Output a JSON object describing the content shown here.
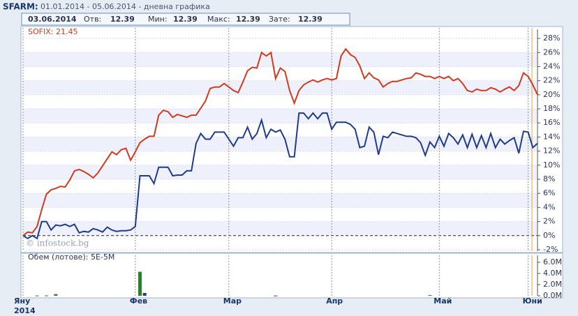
{
  "header": {
    "title": "SFARM:",
    "subtitle": "01.01.2014 - 05.06.2014 - дневна графика"
  },
  "info": {
    "date": "03.06.2014",
    "fields": [
      {
        "label": "Отв:",
        "value": 12.39
      },
      {
        "label": "Мин:",
        "value": 12.39
      },
      {
        "label": "Макс:",
        "value": 12.39
      },
      {
        "label": "Зате:",
        "value": 12.39
      }
    ]
  },
  "watermark": "© infostock.bg",
  "chart_data": [
    {
      "type": "line",
      "x": [
        0,
        1,
        2,
        3,
        4,
        5,
        6,
        7,
        8,
        9,
        10,
        11,
        12,
        13,
        14,
        15,
        16,
        17,
        18,
        19,
        20,
        21,
        22,
        23,
        24,
        25,
        26,
        27,
        28,
        29,
        30,
        31,
        32,
        33,
        34,
        35,
        36,
        37,
        38,
        39,
        40,
        41,
        42,
        43,
        44,
        45,
        46,
        47,
        48,
        49,
        50,
        51,
        52,
        53,
        54,
        55,
        56,
        57,
        58,
        59,
        60,
        61,
        62,
        63,
        64,
        65,
        66,
        67,
        68,
        69,
        70,
        71,
        72,
        73,
        74,
        75,
        76,
        77,
        78,
        79,
        80,
        81,
        82,
        83,
        84,
        85,
        86,
        87,
        88,
        89,
        90,
        91,
        92,
        93,
        94,
        95,
        96,
        97,
        98,
        99,
        100,
        101,
        102,
        103,
        104,
        105,
        106,
        107,
        108,
        109,
        110
      ],
      "series": [
        {
          "name": "SOFIX: 21.45",
          "color": "#d03a1e",
          "values": [
            0,
            0.5,
            0.4,
            1.3,
            3.7,
            5.9,
            6.5,
            6.7,
            7.0,
            6.9,
            7.9,
            9.2,
            9.4,
            9.1,
            8.7,
            8.2,
            8.9,
            9.9,
            10.9,
            11.9,
            11.5,
            12.2,
            12.4,
            10.7,
            11.9,
            13.2,
            13.7,
            14.1,
            14.1,
            17.1,
            17.8,
            17.6,
            16.8,
            17.2,
            17.0,
            16.8,
            17.1,
            17.1,
            18.1,
            19.1,
            20.9,
            21.1,
            21.1,
            21.6,
            21.1,
            20.6,
            20.3,
            21.8,
            23.4,
            23.9,
            23.8,
            26.0,
            25.5,
            26.0,
            22.3,
            23.8,
            23.3,
            20.6,
            18.8,
            20.6,
            21.4,
            21.8,
            22.1,
            21.8,
            22.1,
            22.3,
            22.1,
            22.3,
            25.5,
            26.5,
            25.7,
            25.3,
            24.1,
            22.3,
            23.1,
            22.4,
            22.1,
            21.1,
            21.6,
            21.9,
            21.9,
            22.1,
            22.3,
            22.4,
            23.1,
            22.9,
            22.6,
            22.6,
            22.3,
            22.6,
            22.3,
            22.6,
            22.0,
            22.3,
            21.6,
            20.6,
            20.4,
            20.8,
            20.6,
            20.6,
            21.0,
            20.8,
            20.4,
            20.8,
            21.1,
            20.6,
            21.3,
            23.1,
            22.6,
            21.4,
            20.0
          ]
        },
        {
          "color": "#1f3b8a",
          "values": [
            0,
            -0.4,
            0,
            -0.4,
            2.0,
            2.0,
            0.8,
            1.5,
            1.4,
            1.6,
            1.3,
            1.6,
            0.4,
            0.6,
            0.5,
            1.0,
            0.8,
            0.5,
            1.2,
            0.8,
            0.6,
            0.7,
            0.7,
            0.8,
            1.3,
            8.5,
            8.5,
            8.5,
            7.4,
            9.7,
            9.7,
            9.7,
            8.5,
            8.6,
            8.6,
            9.2,
            9.2,
            13.1,
            14.5,
            13.7,
            13.7,
            14.7,
            14.7,
            14.7,
            13.7,
            12.7,
            13.9,
            13.9,
            15.4,
            13.7,
            14.5,
            16.4,
            13.9,
            15.1,
            14.7,
            15.0,
            13.7,
            11.2,
            11.2,
            17.4,
            17.4,
            16.6,
            17.4,
            16.6,
            17.4,
            17.4,
            15.1,
            16.1,
            16.1,
            16.1,
            15.8,
            15.1,
            12.5,
            12.7,
            15.4,
            14.7,
            11.5,
            14.1,
            13.9,
            14.7,
            14.5,
            14.3,
            14.1,
            14.1,
            13.9,
            13.2,
            11.4,
            13.3,
            12.5,
            14.1,
            12.7,
            14.5,
            13.9,
            13.0,
            14.3,
            12.5,
            14.4,
            12.5,
            14.2,
            12.5,
            14.5,
            12.5,
            13.7,
            13.0,
            13.5,
            13.9,
            11.7,
            14.8,
            14.7,
            12.5,
            13.1
          ]
        }
      ],
      "xlim": [
        0,
        110
      ],
      "xticks": [
        {
          "value": 0,
          "label": "Яну"
        },
        {
          "value": 24,
          "label": "Фев"
        },
        {
          "value": 44,
          "label": "Мар"
        },
        {
          "value": 66,
          "label": "Апр"
        },
        {
          "value": 89,
          "label": "Май"
        },
        {
          "value": 108,
          "label": "Юни"
        }
      ],
      "x_year": "2014",
      "ylim": [
        -2.2,
        28.7
      ],
      "yticks": [
        {
          "value": -2,
          "label": "-2%"
        },
        {
          "value": 0,
          "label": "0%"
        },
        {
          "value": 2,
          "label": "2%"
        },
        {
          "value": 4,
          "label": "4%"
        },
        {
          "value": 6,
          "label": "6%"
        },
        {
          "value": 8,
          "label": "8%"
        },
        {
          "value": 10,
          "label": "10%"
        },
        {
          "value": 12,
          "label": "12%"
        },
        {
          "value": 14,
          "label": "14%"
        },
        {
          "value": 16,
          "label": "16%"
        },
        {
          "value": 18,
          "label": "18%"
        },
        {
          "value": 20,
          "label": "20%"
        },
        {
          "value": 22,
          "label": "22%"
        },
        {
          "value": 24,
          "label": "24%"
        },
        {
          "value": 26,
          "label": "26%"
        },
        {
          "value": 28,
          "label": "28%"
        }
      ],
      "grid": true
    },
    {
      "type": "bar",
      "title": "Обем (лотове): 5E-5M",
      "x": [
        3,
        5,
        7,
        25,
        26,
        54,
        87
      ],
      "values": [
        50000,
        60000,
        300000,
        4300000,
        500000,
        40000,
        120000
      ],
      "colors": [
        "#2e7d32",
        "#2e7d32",
        "#2e7d32",
        "#2e7d32",
        "#1f3b8a",
        "#8b1a1a",
        "#2e7d32"
      ],
      "xlim": [
        0,
        110
      ],
      "ylim": [
        0,
        7500000
      ],
      "yticks": [
        {
          "value": 0,
          "label": "0.0M"
        },
        {
          "value": 2000000,
          "label": "2.0M"
        },
        {
          "value": 4000000,
          "label": "4.0M"
        },
        {
          "value": 6000000,
          "label": "6.0M"
        }
      ]
    }
  ]
}
